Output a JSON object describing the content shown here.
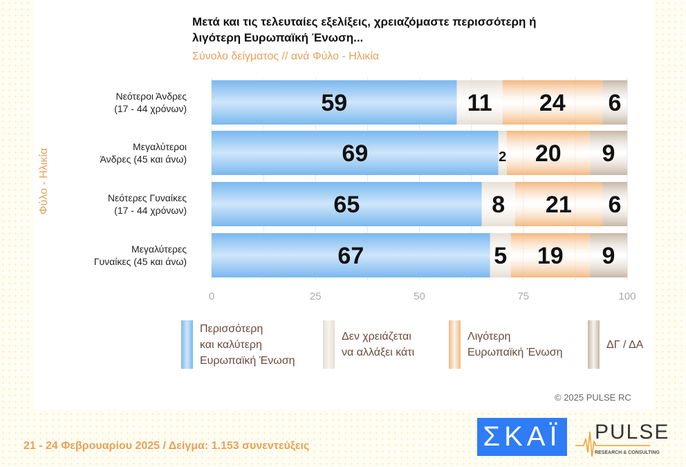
{
  "chart_data": {
    "type": "bar",
    "orientation": "horizontal",
    "stacked": true,
    "title": "Μετά και τις τελευταίες εξελίξεις, χρειαζόμαστε περισσότερη ή λιγότερη Ευρωπαϊκή Ένωση...",
    "subtitle": "Σύνολο δείγματος // ανά Φύλο - Ηλικία",
    "ylabel": "Φύλο - Ηλικία",
    "categories": [
      [
        "Νεότεροι Άνδρες",
        "(17 - 44 χρόνων)"
      ],
      [
        "Μεγαλύτεροι",
        "Άνδρες (45 και άνω)"
      ],
      [
        "Νεότερες Γυναίκες",
        "(17 - 44 χρόνων)"
      ],
      [
        "Μεγαλύτερες",
        "Γυναίκες (45 και άνω)"
      ]
    ],
    "xlim": [
      0,
      100
    ],
    "xticks": [
      "0",
      "25",
      "50",
      "75",
      "100"
    ],
    "grid": true,
    "legend_position": "bottom",
    "series": [
      {
        "name": [
          "Περισσότερη",
          "και καλύτερη",
          "Ευρωπαϊκή Ένωση"
        ],
        "color": "#7ab8ee",
        "values": [
          59,
          69,
          65,
          67
        ]
      },
      {
        "name": [
          "Δεν χρειάζεται",
          "να αλλάξει κάτι"
        ],
        "color": "#e6ded2",
        "values": [
          11,
          2,
          8,
          5
        ]
      },
      {
        "name": [
          "Λιγότερη",
          "Ευρωπαϊκή Ένωση"
        ],
        "color": "#f4b880",
        "values": [
          24,
          20,
          21,
          19
        ]
      },
      {
        "name": [
          "ΔΓ / ΔΑ"
        ],
        "color": "#c7b7a5",
        "values": [
          6,
          9,
          6,
          9
        ]
      }
    ]
  },
  "copyright": "©  2025  PULSE RC",
  "footer": "21 - 24 Φεβρουαρίου 2025  /  Δείγμα:  1.153 συνεντεύξεις",
  "logos": {
    "skai": "ΣΚΑΪ",
    "pulse": "PULSE",
    "pulse_sub": "RESEARCH & CONSULTING",
    "watermark": "PULSE"
  }
}
